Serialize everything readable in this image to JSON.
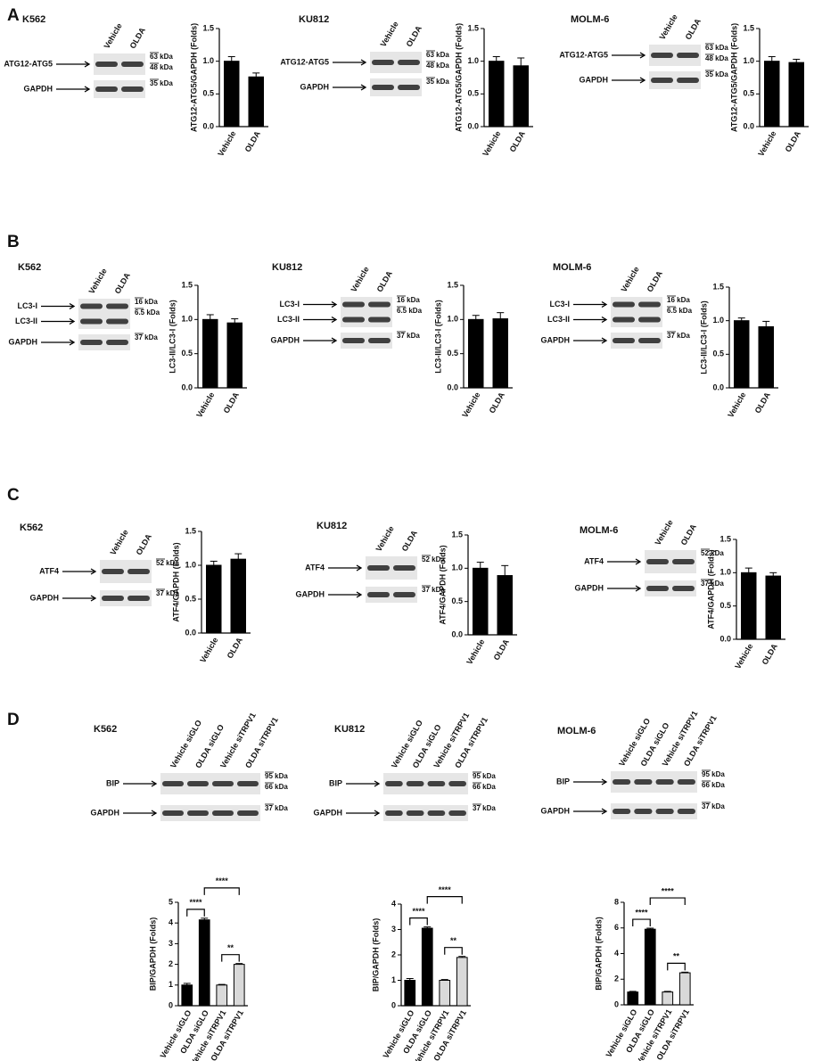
{
  "panels": [
    {
      "letter": "A",
      "blots": [
        {
          "title": "K562",
          "lanes": [
            "Vehicle",
            "OLDA"
          ],
          "rows": [
            {
              "labels": [
                "ATG12-ATG5"
              ],
              "markers": [
                "63 kDa",
                "48 kDa"
              ]
            },
            {
              "labels": [
                "GAPDH"
              ],
              "markers": [
                "35 kDa"
              ]
            }
          ]
        },
        {
          "title": "KU812",
          "lanes": [
            "Vehicle",
            "OLDA"
          ],
          "rows": [
            {
              "labels": [
                "ATG12-ATG5"
              ],
              "markers": [
                "63 kDa",
                "48 kDa"
              ]
            },
            {
              "labels": [
                "GAPDH"
              ],
              "markers": [
                "35 kDa"
              ]
            }
          ]
        },
        {
          "title": "MOLM-6",
          "lanes": [
            "Vehicle",
            "OLDA"
          ],
          "rows": [
            {
              "labels": [
                "ATG12-ATG5"
              ],
              "markers": [
                "63 kDa",
                "48 kDa"
              ]
            },
            {
              "labels": [
                "GAPDH"
              ],
              "markers": [
                "35 kDa"
              ]
            }
          ]
        }
      ]
    },
    {
      "letter": "B",
      "blots": [
        {
          "title": "K562",
          "lanes": [
            "Vehicle",
            "OLDA"
          ],
          "rows": [
            {
              "labels": [
                "LC3-I",
                "LC3-II"
              ],
              "markers": [
                "16 kDa",
                "6.5 kDa"
              ]
            },
            {
              "labels": [
                "GAPDH"
              ],
              "markers": [
                "37 kDa"
              ]
            }
          ]
        },
        {
          "title": "KU812",
          "lanes": [
            "Vehicle",
            "OLDA"
          ],
          "rows": [
            {
              "labels": [
                "LC3-I",
                "LC3-II"
              ],
              "markers": [
                "16 kDa",
                "6.5 kDa"
              ]
            },
            {
              "labels": [
                "GAPDH"
              ],
              "markers": [
                "37 kDa"
              ]
            }
          ]
        },
        {
          "title": "MOLM-6",
          "lanes": [
            "Vehicle",
            "OLDA"
          ],
          "rows": [
            {
              "labels": [
                "LC3-I",
                "LC3-II"
              ],
              "markers": [
                "16 kDa",
                "6.5 kDa"
              ]
            },
            {
              "labels": [
                "GAPDH"
              ],
              "markers": [
                "37 kDa"
              ]
            }
          ]
        }
      ]
    },
    {
      "letter": "C",
      "blots": [
        {
          "title": "K562",
          "lanes": [
            "Vehicle",
            "OLDA"
          ],
          "rows": [
            {
              "labels": [
                "ATF4"
              ],
              "markers": [
                "52 kDa"
              ]
            },
            {
              "labels": [
                "GAPDH"
              ],
              "markers": [
                "37 kDa"
              ]
            }
          ]
        },
        {
          "title": "KU812",
          "lanes": [
            "Vehicle",
            "OLDA"
          ],
          "rows": [
            {
              "labels": [
                "ATF4"
              ],
              "markers": [
                "52 kDa"
              ]
            },
            {
              "labels": [
                "GAPDH"
              ],
              "markers": [
                "37 kDa"
              ]
            }
          ]
        },
        {
          "title": "MOLM-6",
          "lanes": [
            "Vehicle",
            "OLDA"
          ],
          "rows": [
            {
              "labels": [
                "ATF4"
              ],
              "markers": [
                "52 kDa"
              ]
            },
            {
              "labels": [
                "GAPDH"
              ],
              "markers": [
                "37 kDa"
              ]
            }
          ]
        }
      ]
    },
    {
      "letter": "D",
      "blots": [
        {
          "title": "K562",
          "lanes": [
            "Vehicle siGLO",
            "OLDA siGLO",
            "Vehicle siTRPV1",
            "OLDA siTRPV1"
          ],
          "rows": [
            {
              "labels": [
                "BIP"
              ],
              "markers": [
                "95 kDa",
                "66 kDa"
              ]
            },
            {
              "labels": [
                "GAPDH"
              ],
              "markers": [
                "37 kDa"
              ]
            }
          ]
        },
        {
          "title": "KU812",
          "lanes": [
            "Vehicle siGLO",
            "OLDA siGLO",
            "Vehicle siTRPV1",
            "OLDA siTRPV1"
          ],
          "rows": [
            {
              "labels": [
                "BIP"
              ],
              "markers": [
                "95 kDa",
                "66 kDa"
              ]
            },
            {
              "labels": [
                "GAPDH"
              ],
              "markers": [
                "37 kDa"
              ]
            }
          ]
        },
        {
          "title": "MOLM-6",
          "lanes": [
            "Vehicle siGLO",
            "OLDA siGLO",
            "Vehicle siTRPV1",
            "OLDA siTRPV1"
          ],
          "rows": [
            {
              "labels": [
                "BIP"
              ],
              "markers": [
                "95 kDa",
                "66 kDa"
              ]
            },
            {
              "labels": [
                "GAPDH"
              ],
              "markers": [
                "37 kDa"
              ]
            }
          ]
        }
      ]
    }
  ],
  "chart_data": [
    {
      "type": "bar",
      "ylabel": "ATG12-ATG5/GAPDH (Folds)",
      "categories": [
        "Vehicle",
        "OLDA"
      ],
      "values": [
        1.0,
        0.76
      ],
      "errors": [
        0.07,
        0.06
      ],
      "colors": [
        "#000000",
        "#000000"
      ],
      "ylim": [
        0,
        1.5
      ],
      "yticks": [
        {
          "value": 0,
          "label": "0.0"
        },
        0.5,
        {
          "value": 1,
          "label": "1.0"
        },
        1.5
      ]
    },
    {
      "type": "bar",
      "ylabel": "ATG12-ATG5/GAPDH (Folds)",
      "categories": [
        "Vehicle",
        "OLDA"
      ],
      "values": [
        1.0,
        0.93
      ],
      "errors": [
        0.07,
        0.12
      ],
      "colors": [
        "#000000",
        "#000000"
      ],
      "ylim": [
        0,
        1.5
      ],
      "yticks": [
        {
          "value": 0,
          "label": "0.0"
        },
        0.5,
        {
          "value": 1,
          "label": "1.0"
        },
        1.5
      ]
    },
    {
      "type": "bar",
      "ylabel": "ATG12-ATG5/GAPDH (Folds)",
      "categories": [
        "Vehicle",
        "OLDA"
      ],
      "values": [
        1.0,
        0.98
      ],
      "errors": [
        0.07,
        0.05
      ],
      "colors": [
        "#000000",
        "#000000"
      ],
      "ylim": [
        0,
        1.5
      ],
      "yticks": [
        {
          "value": 0,
          "label": "0.0"
        },
        0.5,
        {
          "value": 1,
          "label": "1.0"
        },
        1.5
      ]
    },
    {
      "type": "bar",
      "ylabel": "LC3-II/LC3-I (Folds)",
      "categories": [
        "Vehicle",
        "OLDA"
      ],
      "values": [
        1.0,
        0.95
      ],
      "errors": [
        0.07,
        0.06
      ],
      "colors": [
        "#000000",
        "#000000"
      ],
      "ylim": [
        0,
        1.5
      ],
      "yticks": [
        {
          "value": 0,
          "label": "0.0"
        },
        0.5,
        {
          "value": 1,
          "label": "1.0"
        },
        1.5
      ]
    },
    {
      "type": "bar",
      "ylabel": "LC3-II/LC3-I (Folds)",
      "categories": [
        "Vehicle",
        "OLDA"
      ],
      "values": [
        1.0,
        1.01
      ],
      "errors": [
        0.06,
        0.09
      ],
      "colors": [
        "#000000",
        "#000000"
      ],
      "ylim": [
        0,
        1.5
      ],
      "yticks": [
        {
          "value": 0,
          "label": "0.0"
        },
        0.5,
        {
          "value": 1,
          "label": "1.0"
        },
        1.5
      ]
    },
    {
      "type": "bar",
      "ylabel": "LC3-II/LC3-I (Folds)",
      "categories": [
        "Vehicle",
        "OLDA"
      ],
      "values": [
        1.0,
        0.91
      ],
      "errors": [
        0.04,
        0.08
      ],
      "colors": [
        "#000000",
        "#000000"
      ],
      "ylim": [
        0,
        1.5
      ],
      "yticks": [
        {
          "value": 0,
          "label": "0.0"
        },
        0.5,
        {
          "value": 1,
          "label": "1.0"
        },
        1.5
      ]
    },
    {
      "type": "bar",
      "ylabel": "ATF4/GAPDH (Folds)",
      "categories": [
        "Vehicle",
        "OLDA"
      ],
      "values": [
        1.0,
        1.09
      ],
      "errors": [
        0.06,
        0.08
      ],
      "colors": [
        "#000000",
        "#000000"
      ],
      "ylim": [
        0,
        1.5
      ],
      "yticks": [
        {
          "value": 0,
          "label": "0.0"
        },
        0.5,
        {
          "value": 1,
          "label": "1.0"
        },
        1.5
      ]
    },
    {
      "type": "bar",
      "ylabel": "ATF4/GAPDH (Folds)",
      "categories": [
        "Vehicle",
        "OLDA"
      ],
      "values": [
        1.0,
        0.89
      ],
      "errors": [
        0.09,
        0.15
      ],
      "colors": [
        "#000000",
        "#000000"
      ],
      "ylim": [
        0,
        1.5
      ],
      "yticks": [
        {
          "value": 0,
          "label": "0.0"
        },
        0.5,
        {
          "value": 1,
          "label": "1.0"
        },
        1.5
      ]
    },
    {
      "type": "bar",
      "ylabel": "ATF4/GAPDH (Folds)",
      "categories": [
        "Vehicle",
        "OLDA"
      ],
      "values": [
        1.0,
        0.95
      ],
      "errors": [
        0.07,
        0.05
      ],
      "colors": [
        "#000000",
        "#000000"
      ],
      "ylim": [
        0,
        1.5
      ],
      "yticks": [
        {
          "value": 0,
          "label": "0.0"
        },
        0.5,
        {
          "value": 1,
          "label": "1.0"
        },
        1.5
      ]
    },
    {
      "type": "bar",
      "ylabel": "BIP/GAPDH (Folds)",
      "categories": [
        "Vehicle siGLO",
        "OLDA siGLO",
        "Vehicle siTRPV1",
        "OLDA siTRPV1"
      ],
      "values": [
        1.0,
        4.15,
        1.0,
        2.0
      ],
      "errors": [
        0.08,
        0.08,
        0.03,
        0.04
      ],
      "colors": [
        "#000000",
        "#000000",
        "#d9d9d9",
        "#d9d9d9"
      ],
      "ylim": [
        0,
        5
      ],
      "yticks": [
        0,
        1,
        2,
        3,
        4,
        5
      ],
      "annotations": [
        {
          "text": "****",
          "between": [
            0,
            1
          ]
        },
        {
          "text": "****",
          "between": [
            1,
            3
          ]
        },
        {
          "text": "**",
          "between": [
            2,
            3
          ]
        }
      ]
    },
    {
      "type": "bar",
      "ylabel": "BIP/GAPDH (Folds)",
      "categories": [
        "Vehicle siGLO",
        "OLDA siGLO",
        "Vehicle siTRPV1",
        "OLDA siTRPV1"
      ],
      "values": [
        1.0,
        3.05,
        1.0,
        1.9
      ],
      "errors": [
        0.07,
        0.05,
        0.03,
        0.04
      ],
      "colors": [
        "#000000",
        "#000000",
        "#d9d9d9",
        "#d9d9d9"
      ],
      "ylim": [
        0,
        4
      ],
      "yticks": [
        0,
        1,
        2,
        3,
        4
      ],
      "annotations": [
        {
          "text": "****",
          "between": [
            0,
            1
          ]
        },
        {
          "text": "****",
          "between": [
            1,
            3
          ]
        },
        {
          "text": "**",
          "between": [
            2,
            3
          ]
        }
      ]
    },
    {
      "type": "bar",
      "ylabel": "BIP/GAPDH (Folds)",
      "categories": [
        "Vehicle siGLO",
        "OLDA siGLO",
        "Vehicle siTRPV1",
        "OLDA siTRPV1"
      ],
      "values": [
        1.0,
        5.9,
        1.0,
        2.5
      ],
      "errors": [
        0.05,
        0.08,
        0.05,
        0.05
      ],
      "colors": [
        "#000000",
        "#000000",
        "#d9d9d9",
        "#d9d9d9"
      ],
      "ylim": [
        0,
        8
      ],
      "yticks": [
        0,
        2,
        4,
        6,
        8
      ],
      "annotations": [
        {
          "text": "****",
          "between": [
            0,
            1
          ]
        },
        {
          "text": "****",
          "between": [
            1,
            3
          ]
        },
        {
          "text": "**",
          "between": [
            2,
            3
          ]
        }
      ]
    }
  ]
}
